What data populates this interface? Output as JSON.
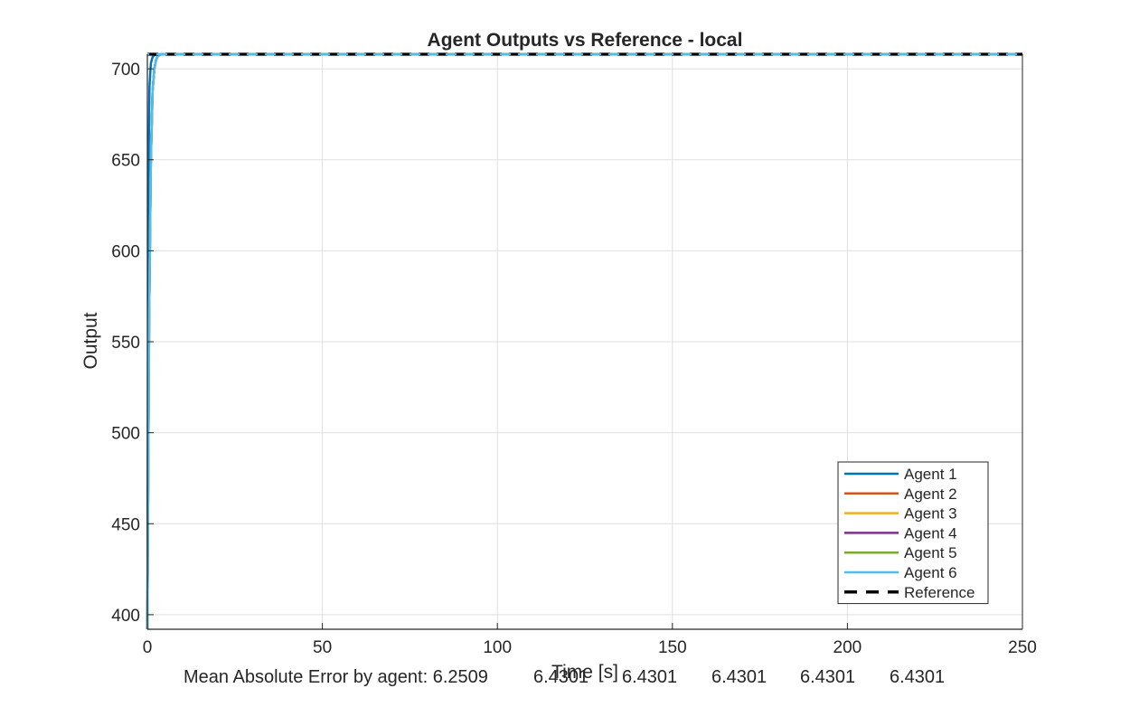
{
  "chart_data": {
    "type": "line",
    "title": "Agent Outputs vs Reference - local",
    "xlabel": "Time [s]",
    "ylabel": "Output",
    "xlim": [
      0,
      250
    ],
    "ylim": [
      392,
      708
    ],
    "x_ticks": [
      0,
      50,
      100,
      150,
      200,
      250
    ],
    "y_ticks": [
      400,
      450,
      500,
      550,
      600,
      650,
      700
    ],
    "grid": true,
    "legend_position": "bottom-right",
    "reference": {
      "name": "Reference",
      "value": 708,
      "color": "#000000",
      "style": "dashed"
    },
    "series": [
      {
        "name": "Agent 1",
        "color": "#0072BD",
        "x": [
          0,
          0.3,
          0.6,
          1.0,
          1.5,
          2.0,
          3.0,
          4.0,
          6.0,
          250
        ],
        "y": [
          392,
          640,
          690,
          703,
          706.5,
          707.5,
          708,
          708,
          708,
          708
        ]
      },
      {
        "name": "Agent 2",
        "color": "#D95319",
        "x": [
          0,
          0.5,
          1.0,
          1.5,
          2.0,
          2.5,
          3.0,
          4.0,
          6.0,
          250
        ],
        "y": [
          392,
          560,
          650,
          688,
          700,
          705,
          707,
          708,
          708,
          708
        ]
      },
      {
        "name": "Agent 3",
        "color": "#EDB120",
        "x": [
          0,
          0.5,
          1.0,
          1.5,
          2.0,
          2.5,
          3.0,
          4.0,
          6.0,
          250
        ],
        "y": [
          392,
          560,
          650,
          688,
          700,
          705,
          707,
          708,
          708,
          708
        ]
      },
      {
        "name": "Agent 4",
        "color": "#7E2F8E",
        "x": [
          0,
          0.5,
          1.0,
          1.5,
          2.0,
          2.5,
          3.0,
          4.0,
          6.0,
          250
        ],
        "y": [
          392,
          560,
          650,
          688,
          700,
          705,
          707,
          708,
          708,
          708
        ]
      },
      {
        "name": "Agent 5",
        "color": "#77AC30",
        "x": [
          0,
          0.5,
          1.0,
          1.5,
          2.0,
          2.5,
          3.0,
          4.0,
          6.0,
          250
        ],
        "y": [
          392,
          560,
          650,
          688,
          700,
          705,
          707,
          708,
          708,
          708
        ]
      },
      {
        "name": "Agent 6",
        "color": "#4DBEEE",
        "x": [
          0,
          0.5,
          1.0,
          1.5,
          2.0,
          2.5,
          3.0,
          4.0,
          6.0,
          250
        ],
        "y": [
          392,
          560,
          650,
          688,
          700,
          705,
          707,
          708,
          708,
          708
        ]
      }
    ]
  },
  "mae": {
    "label": "Mean Absolute Error by agent: 6.2509",
    "values": [
      "6.4301",
      "6.4301",
      "6.4301",
      "6.4301",
      "6.4301"
    ]
  }
}
